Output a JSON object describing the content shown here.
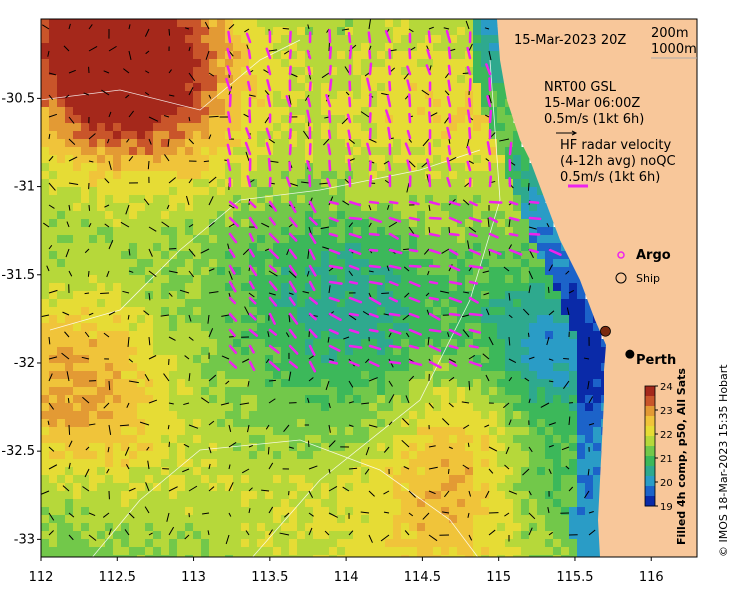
{
  "map": {
    "lon_range": [
      112.0,
      116.3
    ],
    "lat_range": [
      -33.1,
      -30.05
    ],
    "lon_ticks": [
      "112",
      "112.5",
      "113",
      "113.5",
      "114",
      "114.5",
      "115",
      "115.5",
      "116"
    ],
    "lat_ticks": [
      "-30.5",
      "-31",
      "-31.5",
      "-32",
      "-32.5",
      "-33"
    ],
    "colors": {
      "land": "#f8c79a",
      "ocean_mid": "#5cc45a",
      "eddy_core": "#2fb8d0",
      "warm": "#e8c640",
      "hot": "#c27a2a",
      "vector_hf": "#ee22ee",
      "vector_model": "#000000",
      "contour": "#ffffff"
    }
  },
  "annotations": {
    "datetime": "15-Mar-2023 20Z",
    "contour_200": "200m",
    "contour_1000": "1000m",
    "model_name": "NRT00 GSL",
    "model_time": "15-Mar 06:00Z",
    "model_scale": "0.5m/s (1kt 6h)",
    "hf_title": "HF radar velocity",
    "hf_avg": "(4-12h avg) noQC",
    "hf_scale": "0.5m/s (1kt 6h)",
    "argo_label": "Argo",
    "ship_label": "Ship",
    "city_label": "Perth",
    "colorbar_title": "Filled 4h comp, p50, All Sats",
    "credit": "© IMOS 18-Mar-2023 15:35 Hobart"
  },
  "colorbar": {
    "ticks": [
      "24",
      "23",
      "22",
      "21",
      "20",
      "19"
    ],
    "colors": [
      "#a5281b",
      "#c9552a",
      "#e39a34",
      "#f0c43a",
      "#e6dc35",
      "#b6d83a",
      "#72c84a",
      "#3cb85a",
      "#2ea98e",
      "#2a9cc6",
      "#1c63c9",
      "#0a2aa8"
    ]
  },
  "markers": {
    "argo": [
      [
        115.7,
        -31.82
      ]
    ],
    "city": [
      [
        115.86,
        -31.95
      ]
    ]
  }
}
